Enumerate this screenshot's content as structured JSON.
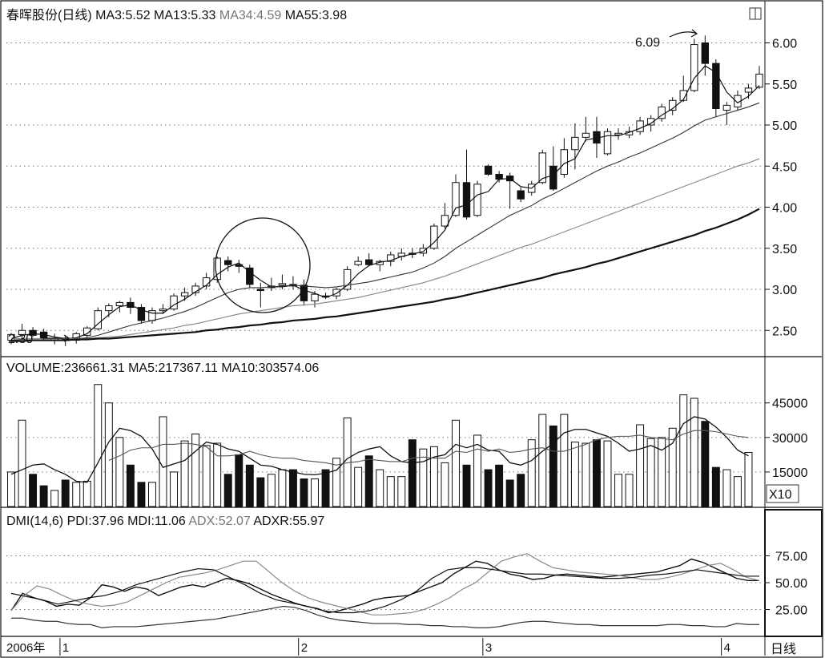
{
  "price_panel": {
    "header": [
      {
        "text": "春晖股份(日线)",
        "gray": false
      },
      {
        "text": "MA3:5.52",
        "gray": false
      },
      {
        "text": "MA13:5.33",
        "gray": false
      },
      {
        "text": "MA34:4.59",
        "gray": true
      },
      {
        "text": "MA55:3.98",
        "gray": false
      }
    ],
    "y_ticks": [
      "6.00",
      "5.50",
      "5.00",
      "4.50",
      "4.00",
      "3.50",
      "3.00",
      "2.50"
    ],
    "annotations": {
      "low": "2.30",
      "high": "6.09"
    }
  },
  "volume_panel": {
    "header": [
      {
        "text": "VOLUME:236661.31",
        "gray": false
      },
      {
        "text": "MA5:217367.11",
        "gray": false
      },
      {
        "text": "MA10:303574.06",
        "gray": false
      }
    ],
    "y_ticks": [
      "45000",
      "30000",
      "15000"
    ],
    "unit_label": "X10"
  },
  "dmi_panel": {
    "header": [
      {
        "text": "DMI(14,6)",
        "gray": false
      },
      {
        "text": "PDI:37.96",
        "gray": false
      },
      {
        "text": "MDI:11.06",
        "gray": false
      },
      {
        "text": "ADX:52.07",
        "gray": true
      },
      {
        "text": "ADXR:55.97",
        "gray": false
      }
    ],
    "y_ticks": [
      "75.00",
      "50.00",
      "25.00"
    ]
  },
  "x_axis": {
    "labels": [
      "2006年",
      "1",
      "2",
      "3",
      "4"
    ],
    "period_label": "日线"
  },
  "chart_data": {
    "type": "candlestick",
    "price_ylim": [
      2.2,
      6.2
    ],
    "candles": [
      {
        "o": 2.38,
        "h": 2.47,
        "l": 2.33,
        "c": 2.45
      },
      {
        "o": 2.45,
        "h": 2.58,
        "l": 2.41,
        "c": 2.5
      },
      {
        "o": 2.5,
        "h": 2.54,
        "l": 2.42,
        "c": 2.44
      },
      {
        "o": 2.48,
        "h": 2.52,
        "l": 2.38,
        "c": 2.41
      },
      {
        "o": 2.4,
        "h": 2.46,
        "l": 2.33,
        "c": 2.4
      },
      {
        "o": 2.39,
        "h": 2.44,
        "l": 2.31,
        "c": 2.38
      },
      {
        "o": 2.38,
        "h": 2.48,
        "l": 2.34,
        "c": 2.46
      },
      {
        "o": 2.44,
        "h": 2.55,
        "l": 2.4,
        "c": 2.53
      },
      {
        "o": 2.52,
        "h": 2.78,
        "l": 2.5,
        "c": 2.74
      },
      {
        "o": 2.74,
        "h": 2.83,
        "l": 2.66,
        "c": 2.8
      },
      {
        "o": 2.8,
        "h": 2.86,
        "l": 2.72,
        "c": 2.84
      },
      {
        "o": 2.84,
        "h": 2.9,
        "l": 2.7,
        "c": 2.78
      },
      {
        "o": 2.78,
        "h": 2.82,
        "l": 2.58,
        "c": 2.62
      },
      {
        "o": 2.62,
        "h": 2.78,
        "l": 2.58,
        "c": 2.74
      },
      {
        "o": 2.74,
        "h": 2.82,
        "l": 2.7,
        "c": 2.76
      },
      {
        "o": 2.76,
        "h": 2.95,
        "l": 2.74,
        "c": 2.92
      },
      {
        "o": 2.92,
        "h": 3.02,
        "l": 2.86,
        "c": 2.96
      },
      {
        "o": 2.96,
        "h": 3.08,
        "l": 2.92,
        "c": 3.04
      },
      {
        "o": 3.04,
        "h": 3.2,
        "l": 3.0,
        "c": 3.14
      },
      {
        "o": 3.12,
        "h": 3.4,
        "l": 3.08,
        "c": 3.38
      },
      {
        "o": 3.35,
        "h": 3.4,
        "l": 3.22,
        "c": 3.3
      },
      {
        "o": 3.3,
        "h": 3.36,
        "l": 3.2,
        "c": 3.28
      },
      {
        "o": 3.26,
        "h": 3.3,
        "l": 3.02,
        "c": 3.06
      },
      {
        "o": 3.0,
        "h": 3.08,
        "l": 2.78,
        "c": 2.99
      },
      {
        "o": 3.02,
        "h": 3.14,
        "l": 2.98,
        "c": 3.04
      },
      {
        "o": 3.05,
        "h": 3.18,
        "l": 3.0,
        "c": 3.07
      },
      {
        "o": 3.06,
        "h": 3.16,
        "l": 3.0,
        "c": 3.04
      },
      {
        "o": 3.05,
        "h": 3.12,
        "l": 2.8,
        "c": 2.86
      },
      {
        "o": 2.86,
        "h": 2.98,
        "l": 2.78,
        "c": 2.94
      },
      {
        "o": 2.92,
        "h": 2.96,
        "l": 2.88,
        "c": 2.91
      },
      {
        "o": 2.92,
        "h": 3.02,
        "l": 2.88,
        "c": 3.0
      },
      {
        "o": 3.0,
        "h": 3.28,
        "l": 2.98,
        "c": 3.24
      },
      {
        "o": 3.3,
        "h": 3.4,
        "l": 3.28,
        "c": 3.34
      },
      {
        "o": 3.36,
        "h": 3.44,
        "l": 3.28,
        "c": 3.3
      },
      {
        "o": 3.3,
        "h": 3.36,
        "l": 3.22,
        "c": 3.34
      },
      {
        "o": 3.34,
        "h": 3.46,
        "l": 3.28,
        "c": 3.42
      },
      {
        "o": 3.4,
        "h": 3.5,
        "l": 3.35,
        "c": 3.44
      },
      {
        "o": 3.44,
        "h": 3.5,
        "l": 3.38,
        "c": 3.43
      },
      {
        "o": 3.44,
        "h": 3.55,
        "l": 3.4,
        "c": 3.5
      },
      {
        "o": 3.5,
        "h": 3.8,
        "l": 3.48,
        "c": 3.77
      },
      {
        "o": 3.77,
        "h": 4.05,
        "l": 3.74,
        "c": 3.9
      },
      {
        "o": 3.9,
        "h": 4.4,
        "l": 3.88,
        "c": 4.3
      },
      {
        "o": 4.3,
        "h": 4.7,
        "l": 3.85,
        "c": 3.88
      },
      {
        "o": 3.9,
        "h": 4.32,
        "l": 3.88,
        "c": 4.28
      },
      {
        "o": 4.5,
        "h": 4.52,
        "l": 4.38,
        "c": 4.4
      },
      {
        "o": 4.4,
        "h": 4.44,
        "l": 4.3,
        "c": 4.34
      },
      {
        "o": 4.38,
        "h": 4.42,
        "l": 3.98,
        "c": 4.32
      },
      {
        "o": 4.2,
        "h": 4.24,
        "l": 4.06,
        "c": 4.1
      },
      {
        "o": 4.18,
        "h": 4.32,
        "l": 4.14,
        "c": 4.28
      },
      {
        "o": 4.3,
        "h": 4.7,
        "l": 4.28,
        "c": 4.66
      },
      {
        "o": 4.5,
        "h": 4.74,
        "l": 4.2,
        "c": 4.22
      },
      {
        "o": 4.4,
        "h": 4.84,
        "l": 4.36,
        "c": 4.7
      },
      {
        "o": 4.7,
        "h": 5.02,
        "l": 4.46,
        "c": 4.85
      },
      {
        "o": 4.85,
        "h": 5.1,
        "l": 4.8,
        "c": 4.9
      },
      {
        "o": 4.92,
        "h": 5.1,
        "l": 4.6,
        "c": 4.78
      },
      {
        "o": 4.65,
        "h": 4.96,
        "l": 4.63,
        "c": 4.92
      },
      {
        "o": 4.88,
        "h": 4.96,
        "l": 4.82,
        "c": 4.9
      },
      {
        "o": 4.88,
        "h": 4.98,
        "l": 4.84,
        "c": 4.92
      },
      {
        "o": 4.92,
        "h": 5.1,
        "l": 4.88,
        "c": 5.05
      },
      {
        "o": 5.0,
        "h": 5.12,
        "l": 4.92,
        "c": 5.08
      },
      {
        "o": 5.08,
        "h": 5.26,
        "l": 5.04,
        "c": 5.22
      },
      {
        "o": 5.18,
        "h": 5.34,
        "l": 5.12,
        "c": 5.3
      },
      {
        "o": 5.3,
        "h": 5.6,
        "l": 5.28,
        "c": 5.42
      },
      {
        "o": 5.42,
        "h": 6.05,
        "l": 5.4,
        "c": 5.98
      },
      {
        "o": 6.0,
        "h": 6.09,
        "l": 5.6,
        "c": 5.75
      },
      {
        "o": 5.75,
        "h": 5.8,
        "l": 5.1,
        "c": 5.2
      },
      {
        "o": 5.18,
        "h": 5.28,
        "l": 5.0,
        "c": 5.24
      },
      {
        "o": 5.22,
        "h": 5.42,
        "l": 5.18,
        "c": 5.36
      },
      {
        "o": 5.4,
        "h": 5.5,
        "l": 5.32,
        "c": 5.45
      },
      {
        "o": 5.46,
        "h": 5.72,
        "l": 5.44,
        "c": 5.62
      }
    ],
    "ma_lines": {
      "MA3": [
        2.4,
        2.44,
        2.46,
        2.45,
        2.42,
        2.4,
        2.41,
        2.46,
        2.58,
        2.69,
        2.79,
        2.81,
        2.75,
        2.71,
        2.71,
        2.81,
        2.88,
        2.97,
        3.05,
        3.18,
        3.27,
        3.32,
        3.21,
        3.11,
        3.03,
        3.03,
        3.05,
        2.99,
        2.95,
        2.9,
        2.95,
        3.05,
        3.19,
        3.29,
        3.33,
        3.35,
        3.4,
        3.43,
        3.46,
        3.57,
        3.72,
        3.99,
        4.03,
        4.15,
        4.19,
        4.34,
        4.35,
        4.25,
        4.23,
        4.35,
        4.39,
        4.53,
        4.59,
        4.82,
        4.84,
        4.87,
        4.87,
        4.91,
        4.96,
        5.02,
        5.12,
        5.2,
        5.31,
        5.57,
        5.72,
        5.64,
        5.4,
        5.27,
        5.35,
        5.48
      ],
      "MA13": [
        2.38,
        2.39,
        2.4,
        2.4,
        2.4,
        2.4,
        2.4,
        2.41,
        2.44,
        2.48,
        2.52,
        2.56,
        2.59,
        2.62,
        2.65,
        2.69,
        2.73,
        2.78,
        2.84,
        2.9,
        2.96,
        3.0,
        3.02,
        3.02,
        3.03,
        3.04,
        3.05,
        3.04,
        3.03,
        3.02,
        3.03,
        3.05,
        3.07,
        3.09,
        3.12,
        3.15,
        3.18,
        3.21,
        3.26,
        3.32,
        3.4,
        3.5,
        3.58,
        3.66,
        3.74,
        3.82,
        3.9,
        3.96,
        4.02,
        4.1,
        4.16,
        4.23,
        4.3,
        4.37,
        4.44,
        4.5,
        4.55,
        4.61,
        4.66,
        4.72,
        4.78,
        4.84,
        4.91,
        4.99,
        5.06,
        5.1,
        5.14,
        5.18,
        5.22,
        5.27
      ],
      "MA34": [
        2.4,
        2.4,
        2.4,
        2.4,
        2.4,
        2.4,
        2.4,
        2.4,
        2.41,
        2.42,
        2.43,
        2.45,
        2.47,
        2.49,
        2.51,
        2.53,
        2.56,
        2.58,
        2.61,
        2.64,
        2.67,
        2.7,
        2.72,
        2.74,
        2.76,
        2.78,
        2.8,
        2.81,
        2.82,
        2.84,
        2.86,
        2.88,
        2.9,
        2.93,
        2.96,
        2.99,
        3.02,
        3.05,
        3.08,
        3.12,
        3.16,
        3.21,
        3.26,
        3.31,
        3.36,
        3.41,
        3.46,
        3.51,
        3.55,
        3.6,
        3.65,
        3.7,
        3.75,
        3.8,
        3.85,
        3.9,
        3.95,
        4.0,
        4.05,
        4.1,
        4.15,
        4.2,
        4.25,
        4.3,
        4.35,
        4.4,
        4.45,
        4.5,
        4.54,
        4.59
      ],
      "MA55": [
        2.37,
        2.37,
        2.38,
        2.38,
        2.38,
        2.38,
        2.39,
        2.39,
        2.4,
        2.4,
        2.41,
        2.42,
        2.43,
        2.44,
        2.45,
        2.46,
        2.47,
        2.48,
        2.5,
        2.51,
        2.53,
        2.54,
        2.56,
        2.57,
        2.59,
        2.6,
        2.62,
        2.63,
        2.64,
        2.66,
        2.67,
        2.69,
        2.71,
        2.73,
        2.75,
        2.77,
        2.79,
        2.81,
        2.83,
        2.85,
        2.88,
        2.9,
        2.93,
        2.96,
        2.99,
        3.02,
        3.05,
        3.08,
        3.11,
        3.14,
        3.18,
        3.21,
        3.24,
        3.27,
        3.31,
        3.34,
        3.38,
        3.42,
        3.46,
        3.5,
        3.54,
        3.58,
        3.62,
        3.66,
        3.71,
        3.75,
        3.8,
        3.85,
        3.91,
        3.98
      ]
    },
    "volume_ylim": [
      0,
      55000
    ],
    "volume": [
      15000,
      37500,
      14000,
      9000,
      7000,
      11500,
      10500,
      11000,
      53000,
      45000,
      30000,
      18000,
      10500,
      10500,
      39000,
      15000,
      28500,
      31500,
      26500,
      27500,
      14000,
      22500,
      18000,
      12500,
      14000,
      16000,
      16000,
      12000,
      12000,
      16000,
      21000,
      38500,
      17000,
      22000,
      16000,
      13000,
      13000,
      29000,
      25000,
      26000,
      19000,
      37500,
      18000,
      31000,
      16000,
      18000,
      11500,
      14000,
      29000,
      40000,
      35000,
      40000,
      28000,
      27500,
      29000,
      28500,
      14000,
      14000,
      35500,
      29500,
      30000,
      34000,
      48500,
      47000,
      37000,
      17000,
      16000,
      13000,
      23500
    ],
    "vol_ma5": [
      14000,
      16000,
      18000,
      18500,
      16000,
      14000,
      11000,
      10500,
      19000,
      28000,
      34000,
      33000,
      30500,
      25000,
      17000,
      18500,
      20000,
      24000,
      28000,
      27000,
      25000,
      24000,
      21000,
      18000,
      17500,
      16000,
      15000,
      14000,
      13800,
      14500,
      15800,
      20800,
      23500,
      25000,
      26000,
      22000,
      19500,
      19000,
      19500,
      21500,
      22500,
      27000,
      25500,
      27000,
      24500,
      24000,
      19000,
      18000,
      20000,
      24000,
      27500,
      32000,
      33500,
      33500,
      32000,
      30500,
      27500,
      24000,
      25000,
      26500,
      24500,
      27500,
      36000,
      39000,
      38000,
      34500,
      30000,
      24500,
      22000
    ],
    "vol_ma10": [
      null,
      null,
      null,
      null,
      null,
      null,
      null,
      null,
      null,
      20000,
      22000,
      24500,
      25500,
      25500,
      27000,
      27000,
      27500,
      27000,
      26000,
      22000,
      22000,
      22500,
      24000,
      22500,
      21500,
      21000,
      21000,
      20000,
      19500,
      19000,
      18000,
      19000,
      19500,
      20500,
      20000,
      19500,
      19500,
      21000,
      21500,
      21000,
      21000,
      24000,
      23500,
      25000,
      24000,
      25000,
      23500,
      24000,
      25000,
      25500,
      24000,
      24000,
      25500,
      27000,
      29000,
      30000,
      30500,
      30500,
      31000,
      30000,
      29500,
      29000,
      31500,
      33000,
      33000,
      32500,
      31500,
      30500,
      30000
    ],
    "dmi_ylim": [
      0,
      100
    ],
    "PDI": [
      24,
      40,
      36,
      33,
      28,
      30,
      29,
      36,
      48,
      46,
      42,
      46,
      44,
      38,
      42,
      46,
      48,
      46,
      50,
      54,
      52,
      49,
      44,
      39,
      35,
      31,
      28,
      26,
      22,
      24,
      27,
      30,
      34,
      36,
      37,
      38,
      42,
      46,
      50,
      58,
      64,
      70,
      68,
      62,
      58,
      56,
      53,
      54,
      57,
      58,
      57,
      56,
      55,
      56,
      57,
      58,
      59,
      60,
      63,
      66,
      72,
      69,
      64,
      59,
      54,
      52,
      52
    ],
    "MDI": [
      17,
      17,
      15,
      14,
      14,
      12,
      11,
      11,
      8,
      9,
      9,
      9,
      10,
      11,
      12,
      13,
      14,
      15,
      16,
      18,
      20,
      22,
      24,
      26,
      28,
      27,
      24,
      20,
      17,
      15,
      14,
      13,
      12,
      12,
      12,
      11,
      11,
      10,
      10,
      9,
      9,
      8,
      8,
      9,
      11,
      13,
      14,
      14,
      13,
      12,
      11,
      11,
      10,
      10,
      10,
      10,
      10,
      10,
      11,
      11,
      10,
      10,
      9,
      9,
      12,
      11,
      11
    ],
    "ADX": [
      24,
      38,
      47,
      44,
      38,
      33,
      30,
      28,
      29,
      32,
      38,
      44,
      50,
      55,
      57,
      59,
      62,
      66,
      70,
      70,
      60,
      50,
      42,
      36,
      32,
      29,
      26,
      23,
      20,
      20,
      21,
      22,
      25,
      30,
      36,
      44,
      50,
      60,
      70,
      74,
      77,
      70,
      64,
      62,
      60,
      59,
      58,
      57,
      55,
      53,
      53,
      55,
      58,
      62,
      66,
      68,
      62,
      55,
      52
    ],
    "ADXR": [
      40,
      37,
      34,
      30,
      33,
      36,
      38,
      42,
      48,
      52,
      56,
      60,
      63,
      62,
      55,
      48,
      40,
      34,
      31,
      28,
      24,
      22,
      22,
      24,
      28,
      34,
      42,
      54,
      62,
      64,
      64,
      62,
      60,
      58,
      58,
      57,
      56,
      55,
      54,
      54,
      55,
      57,
      58,
      60,
      62,
      60,
      58,
      56,
      56
    ]
  }
}
